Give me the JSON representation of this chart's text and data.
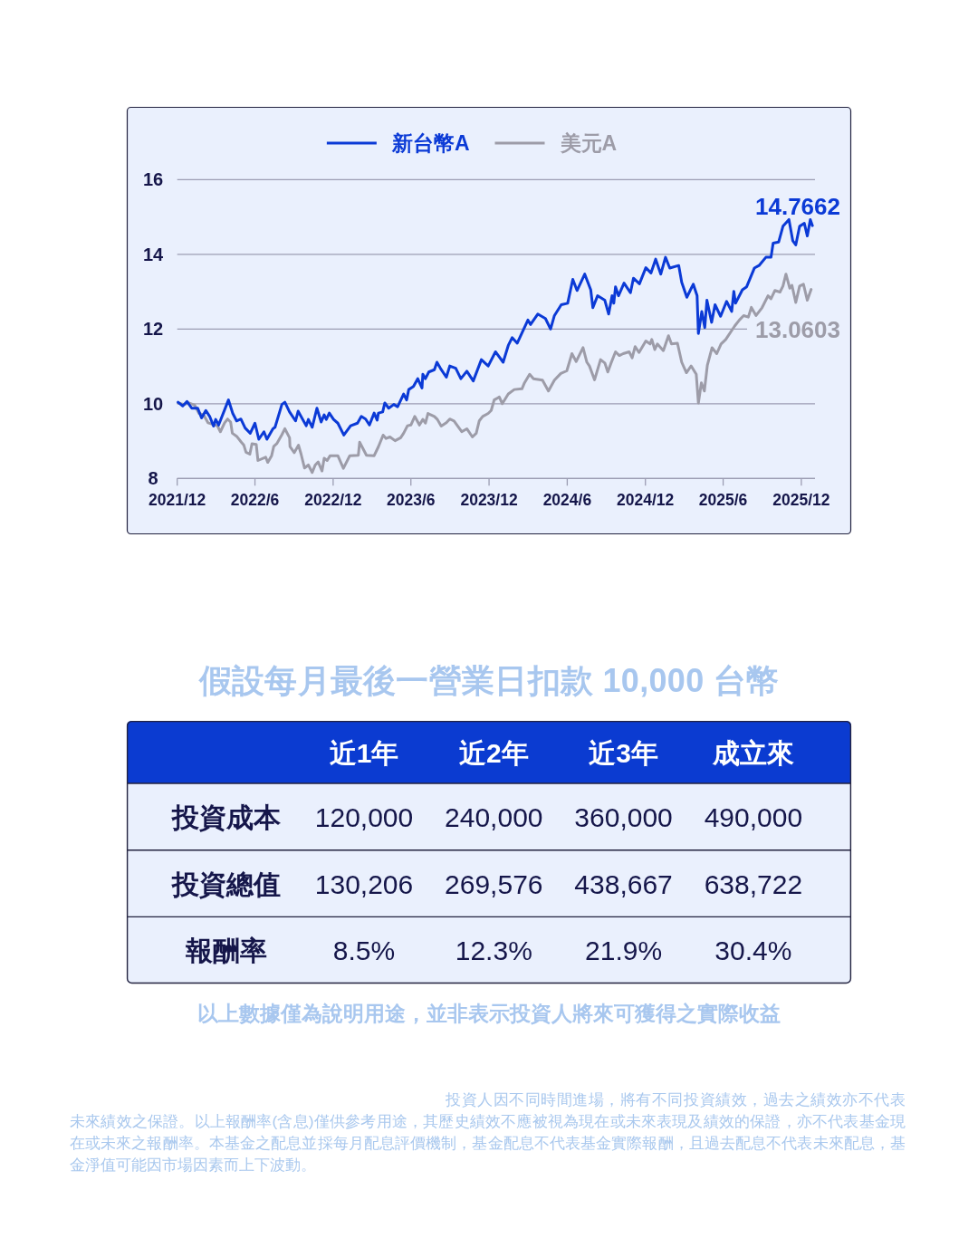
{
  "chart_data": [
    {
      "type": "line",
      "legend": "top",
      "grid": "y",
      "xlim": [
        "2021-12-01",
        "2026-01-02"
      ],
      "xticks": [
        {
          "value": "2021-12-01",
          "label": "2021/12"
        },
        {
          "value": "2022-06-01",
          "label": "2022/6"
        },
        {
          "value": "2022-12-01",
          "label": "2022/12"
        },
        {
          "value": "2023-06-01",
          "label": "2023/6"
        },
        {
          "value": "2023-12-01",
          "label": "2023/12"
        },
        {
          "value": "2024-06-01",
          "label": "2024/6"
        },
        {
          "value": "2024-12-01",
          "label": "2024/12"
        },
        {
          "value": "2025-06-01",
          "label": "2025/6"
        },
        {
          "value": "2025-12-01",
          "label": "2025/12"
        }
      ],
      "ylim": [
        8,
        16
      ],
      "yticks": [
        8,
        10,
        12,
        14,
        16
      ],
      "series": [
        {
          "name": "新台幣A",
          "color": "#0b3ad6",
          "x": [
            "2021-12-03",
            "2021-12-14",
            "2021-12-24",
            "2022-01-04",
            "2022-01-18",
            "2022-01-27",
            "2022-02-06",
            "2022-02-15",
            "2022-02-24",
            "2022-03-01",
            "2022-03-08",
            "2022-03-31",
            "2022-04-10",
            "2022-04-19",
            "2022-04-29",
            "2022-05-09",
            "2022-05-21",
            "2022-06-01",
            "2022-06-10",
            "2022-06-22",
            "2022-06-29",
            "2022-07-13",
            "2022-07-18",
            "2022-08-03",
            "2022-08-10",
            "2022-08-21",
            "2022-09-04",
            "2022-09-10",
            "2022-09-29",
            "2022-10-04",
            "2022-10-13",
            "2022-10-24",
            "2022-11-03",
            "2022-11-10",
            "2022-11-15",
            "2022-11-22",
            "2022-12-02",
            "2022-12-12",
            "2022-12-26",
            "2023-01-11",
            "2023-01-27",
            "2023-02-05",
            "2023-02-15",
            "2023-02-24",
            "2023-03-07",
            "2023-03-14",
            "2023-03-17",
            "2023-03-27",
            "2023-04-01",
            "2023-04-10",
            "2023-04-22",
            "2023-05-01",
            "2023-05-15",
            "2023-05-22",
            "2023-05-27",
            "2023-06-07",
            "2023-06-17",
            "2023-06-27",
            "2023-06-29",
            "2023-07-05",
            "2023-07-13",
            "2023-07-26",
            "2023-08-01",
            "2023-08-09",
            "2023-08-23",
            "2023-08-31",
            "2023-09-14",
            "2023-09-26",
            "2023-10-10",
            "2023-10-25",
            "2023-11-13",
            "2023-11-29",
            "2023-12-16",
            "2024-01-03",
            "2024-01-15",
            "2024-01-24",
            "2024-02-05",
            "2024-03-01",
            "2024-03-07",
            "2024-03-24",
            "2024-04-11",
            "2024-04-23",
            "2024-05-02",
            "2024-05-18",
            "2024-06-02",
            "2024-06-14",
            "2024-06-24",
            "2024-07-12",
            "2024-07-26",
            "2024-07-31",
            "2024-08-11",
            "2024-08-28",
            "2024-09-06",
            "2024-09-14",
            "2024-09-18",
            "2024-09-22",
            "2024-09-29",
            "2024-10-12",
            "2024-10-27",
            "2024-11-03",
            "2024-11-17",
            "2024-12-02",
            "2024-12-14",
            "2024-12-25",
            "2025-01-06",
            "2025-01-17",
            "2025-01-27",
            "2025-02-17",
            "2025-02-24",
            "2025-03-08",
            "2025-03-23",
            "2025-04-01",
            "2025-04-04",
            "2025-04-12",
            "2025-04-19",
            "2025-04-24",
            "2025-05-05",
            "2025-05-13",
            "2025-05-26",
            "2025-06-09",
            "2025-06-21",
            "2025-06-26",
            "2025-06-30",
            "2025-07-16",
            "2025-07-26",
            "2025-08-13",
            "2025-08-24",
            "2025-09-09",
            "2025-09-21",
            "2025-09-26",
            "2025-10-09",
            "2025-10-19",
            "2025-11-02",
            "2025-11-11",
            "2025-11-18",
            "2025-11-27",
            "2025-12-08",
            "2025-12-15",
            "2025-12-22",
            "2025-12-27"
          ],
          "values": [
            10.04,
            9.94,
            10.06,
            9.88,
            9.88,
            9.62,
            9.82,
            9.66,
            9.4,
            9.58,
            9.43,
            10.1,
            9.74,
            9.54,
            9.59,
            9.35,
            9.21,
            9.48,
            9.05,
            9.25,
            9.05,
            9.33,
            9.37,
            9.98,
            10.04,
            9.78,
            9.54,
            9.8,
            9.41,
            9.58,
            9.37,
            9.88,
            9.51,
            9.7,
            9.58,
            9.75,
            9.58,
            9.48,
            9.16,
            9.41,
            9.48,
            9.66,
            9.59,
            9.43,
            9.75,
            9.56,
            9.75,
            9.78,
            10.02,
            9.88,
            9.98,
            9.92,
            10.26,
            10.1,
            10.38,
            10.46,
            10.67,
            10.42,
            10.79,
            10.67,
            10.85,
            10.91,
            11.11,
            10.95,
            10.71,
            11.01,
            10.95,
            10.67,
            10.87,
            10.61,
            11.18,
            11.01,
            11.39,
            11.11,
            11.56,
            11.77,
            11.62,
            12.24,
            12.12,
            12.4,
            12.28,
            12.0,
            12.36,
            12.65,
            12.69,
            13.33,
            13.03,
            13.47,
            13.05,
            12.57,
            12.89,
            12.77,
            12.4,
            12.89,
            12.69,
            13.13,
            12.89,
            13.23,
            12.97,
            13.36,
            13.21,
            13.64,
            13.5,
            13.87,
            13.47,
            13.92,
            13.63,
            13.7,
            13.25,
            12.85,
            13.2,
            12.89,
            11.88,
            12.47,
            12.04,
            12.77,
            12.18,
            12.65,
            12.34,
            12.74,
            12.47,
            13.01,
            12.69,
            13.05,
            13.13,
            13.63,
            13.7,
            13.92,
            13.92,
            14.3,
            14.33,
            14.75,
            14.93,
            14.36,
            14.25,
            14.75,
            14.83,
            14.49,
            14.93,
            14.7662
          ]
        },
        {
          "name": "美元A",
          "color": "#9d9ca8",
          "x": [
            "2021-12-03",
            "2021-12-17",
            "2021-12-28",
            "2022-01-11",
            "2022-01-21",
            "2022-02-01",
            "2022-02-11",
            "2022-03-05",
            "2022-03-12",
            "2022-03-22",
            "2022-03-29",
            "2022-04-05",
            "2022-04-09",
            "2022-04-19",
            "2022-04-30",
            "2022-05-06",
            "2022-05-11",
            "2022-05-20",
            "2022-05-25",
            "2022-06-04",
            "2022-06-08",
            "2022-06-26",
            "2022-07-01",
            "2022-07-10",
            "2022-07-15",
            "2022-07-22",
            "2022-08-03",
            "2022-08-10",
            "2022-08-21",
            "2022-08-22",
            "2022-09-01",
            "2022-09-11",
            "2022-09-17",
            "2022-09-25",
            "2022-10-04",
            "2022-10-13",
            "2022-10-20",
            "2022-10-27",
            "2022-11-05",
            "2022-11-10",
            "2022-11-17",
            "2022-11-24",
            "2022-12-12",
            "2022-12-25",
            "2023-01-09",
            "2023-01-29",
            "2023-02-01",
            "2023-02-17",
            "2023-03-07",
            "2023-03-17",
            "2023-03-28",
            "2023-04-04",
            "2023-04-13",
            "2023-04-25",
            "2023-05-08",
            "2023-05-15",
            "2023-05-24",
            "2023-06-01",
            "2023-06-10",
            "2023-06-21",
            "2023-06-29",
            "2023-07-05",
            "2023-07-11",
            "2023-07-26",
            "2023-08-02",
            "2023-08-11",
            "2023-08-23",
            "2023-08-31",
            "2023-09-10",
            "2023-09-28",
            "2023-10-10",
            "2023-10-23",
            "2023-11-01",
            "2023-11-08",
            "2023-11-16",
            "2023-11-29",
            "2023-12-06",
            "2023-12-13",
            "2023-12-22",
            "2023-12-25",
            "2024-01-01",
            "2024-01-15",
            "2024-01-29",
            "2024-02-16",
            "2024-02-22",
            "2024-03-05",
            "2024-03-14",
            "2024-04-04",
            "2024-04-18",
            "2024-05-02",
            "2024-05-17",
            "2024-05-31",
            "2024-06-12",
            "2024-06-22",
            "2024-07-08",
            "2024-07-17",
            "2024-07-23",
            "2024-08-04",
            "2024-08-18",
            "2024-08-28",
            "2024-09-04",
            "2024-09-11",
            "2024-09-22",
            "2024-10-01",
            "2024-10-10",
            "2024-10-24",
            "2024-10-31",
            "2024-11-07",
            "2024-11-16",
            "2024-12-02",
            "2024-12-12",
            "2024-12-16",
            "2024-12-23",
            "2024-12-29",
            "2025-01-12",
            "2025-01-24",
            "2025-01-31",
            "2025-02-14",
            "2025-02-24",
            "2025-03-07",
            "2025-03-18",
            "2025-03-30",
            "2025-04-04",
            "2025-04-11",
            "2025-04-18",
            "2025-04-25",
            "2025-05-06",
            "2025-05-17",
            "2025-05-27",
            "2025-06-07",
            "2025-06-28",
            "2025-07-09",
            "2025-07-19",
            "2025-07-30",
            "2025-08-06",
            "2025-08-17",
            "2025-08-31",
            "2025-09-14",
            "2025-09-21",
            "2025-09-30",
            "2025-10-12",
            "2025-10-19",
            "2025-10-26",
            "2025-11-04",
            "2025-11-09",
            "2025-11-18",
            "2025-11-27",
            "2025-12-06",
            "2025-12-15",
            "2025-12-24"
          ],
          "values": [
            10.02,
            9.98,
            10.02,
            9.96,
            9.74,
            9.7,
            9.49,
            9.41,
            9.25,
            9.49,
            9.59,
            9.51,
            9.21,
            9.13,
            8.97,
            8.89,
            8.7,
            8.65,
            8.93,
            8.91,
            8.48,
            8.57,
            8.43,
            8.61,
            8.86,
            8.93,
            9.17,
            9.33,
            9.09,
            8.85,
            8.69,
            8.89,
            8.65,
            8.28,
            8.36,
            8.16,
            8.36,
            8.44,
            8.2,
            8.54,
            8.48,
            8.61,
            8.61,
            8.27,
            8.61,
            8.62,
            8.97,
            8.62,
            8.61,
            8.85,
            9.16,
            9.07,
            9.11,
            9.01,
            9.09,
            9.21,
            9.41,
            9.43,
            9.66,
            9.43,
            9.58,
            9.48,
            9.74,
            9.66,
            9.58,
            9.4,
            9.49,
            9.59,
            9.54,
            9.25,
            9.33,
            9.11,
            9.21,
            9.54,
            9.66,
            9.74,
            9.82,
            10.1,
            10.16,
            10.18,
            10.0,
            10.26,
            10.38,
            10.4,
            10.56,
            10.79,
            10.67,
            10.63,
            10.34,
            10.63,
            10.81,
            10.88,
            11.34,
            11.13,
            11.5,
            11.11,
            11.01,
            10.64,
            11.18,
            11.09,
            10.85,
            11.07,
            11.39,
            11.29,
            11.34,
            11.39,
            11.23,
            11.53,
            11.37,
            11.68,
            11.6,
            11.72,
            11.45,
            11.6,
            11.42,
            11.82,
            11.6,
            11.62,
            11.11,
            10.83,
            11.01,
            10.79,
            10.02,
            10.56,
            10.34,
            11.03,
            11.5,
            11.34,
            11.6,
            11.72,
            12.08,
            12.24,
            12.36,
            12.32,
            12.58,
            12.36,
            12.57,
            12.89,
            12.81,
            13.03,
            12.99,
            13.15,
            13.47,
            13.09,
            13.17,
            12.71,
            13.15,
            13.2,
            12.77,
            13.0603
          ]
        }
      ],
      "annotations": [
        {
          "text": "14.7662",
          "x": "2025-12-27",
          "y": 14.7662
        },
        {
          "text": "13.0603",
          "x": "2025-12-24",
          "y": 13.0603
        }
      ]
    },
    {
      "type": "other",
      "title": "假設每月最後一營業日扣款 10,000 台幣",
      "categories": [
        "近1年",
        "近2年",
        "近3年",
        "成立來"
      ],
      "y_categories": [
        "投資成本",
        "投資總值",
        "報酬率"
      ],
      "cell_labels": [
        [
          "120,000",
          "240,000",
          "360,000",
          "490,000"
        ],
        [
          "130,206",
          "269,576",
          "438,667",
          "638,722"
        ],
        [
          "8.5%",
          "12.3%",
          "21.9%",
          "30.4%"
        ]
      ],
      "annotations": [
        "以上數據僅為說明用途，並非表示投資人將來可獲得之實際收益",
        "投資人因不同時間進場，將有不同投資績效，過去之績效亦不代表未來績效之保證。以上報酬率(含息)僅供參考用途，其歷史績效不應被視為現在或未來表現及績效的保證，亦不代表基金現在或未來之報酬率。本基金之配息並採每月配息評價機制，基金配息不代表基金實際報酬，且過去配息不代表未來配息，基金淨值可能因市場因素而上下波動。"
      ]
    }
  ]
}
